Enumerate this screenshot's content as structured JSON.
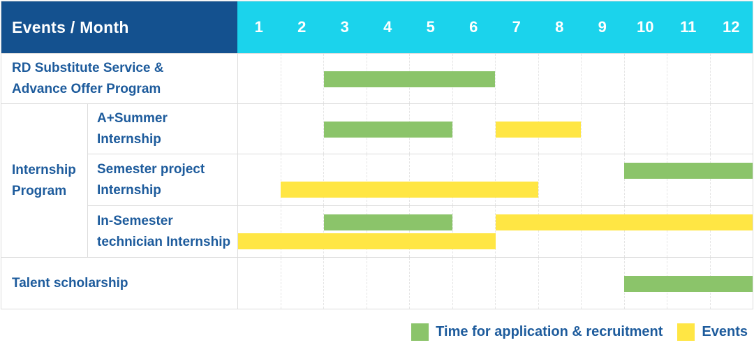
{
  "header": {
    "title": "Events / Month",
    "months": [
      "1",
      "2",
      "3",
      "4",
      "5",
      "6",
      "7",
      "8",
      "9",
      "10",
      "11",
      "12"
    ]
  },
  "chart_data": {
    "type": "bar",
    "subtype": "gantt",
    "title": "Events / Month schedule",
    "x": {
      "label": "Month",
      "range": [
        1,
        12
      ],
      "ticks": [
        1,
        2,
        3,
        4,
        5,
        6,
        7,
        8,
        9,
        10,
        11,
        12
      ]
    },
    "group_label": "Internship\nProgram",
    "rows": [
      {
        "label": "RD Substitute Service &\nAdvance Offer Program",
        "group": null,
        "bars": [
          {
            "series": "Time for application & recruitment",
            "color_key": "green",
            "start": 3,
            "end": 6,
            "track": "center"
          }
        ]
      },
      {
        "label": "A+Summer\nInternship",
        "group": "Internship Program",
        "bars": [
          {
            "series": "Time for application & recruitment",
            "color_key": "green",
            "start": 3,
            "end": 5,
            "track": "center"
          },
          {
            "series": "Events",
            "color_key": "yellow",
            "start": 7,
            "end": 8,
            "track": "center"
          }
        ]
      },
      {
        "label": "Semester project\nInternship",
        "group": "Internship Program",
        "bars": [
          {
            "series": "Time for application & recruitment",
            "color_key": "green",
            "start": 10,
            "end": 12,
            "track": "top"
          },
          {
            "series": "Events",
            "color_key": "yellow",
            "start": 2,
            "end": 7,
            "track": "bottom"
          }
        ]
      },
      {
        "label": "In-Semester\ntechnician Internship",
        "group": "Internship Program",
        "bars": [
          {
            "series": "Time for application & recruitment",
            "color_key": "green",
            "start": 3,
            "end": 5,
            "track": "top"
          },
          {
            "series": "Events",
            "color_key": "yellow",
            "start": 7,
            "end": 12,
            "track": "top"
          },
          {
            "series": "Events",
            "color_key": "yellow",
            "start": 1,
            "end": 6,
            "track": "bottom"
          }
        ]
      },
      {
        "label": "Talent scholarship",
        "group": null,
        "bars": [
          {
            "series": "Time for application & recruitment",
            "color_key": "green",
            "start": 10,
            "end": 12,
            "track": "center"
          }
        ]
      }
    ],
    "legend_position": "bottom-right"
  },
  "legend": {
    "items": [
      {
        "color_key": "green",
        "label": "Time for application & recruitment"
      },
      {
        "color_key": "yellow",
        "label": "Events"
      }
    ]
  },
  "colors": {
    "header_bg": "#14518f",
    "months_bg": "#1bd3ec",
    "header_text": "#ffffff",
    "label_text": "#1d5b9c",
    "green": "#8bc46a",
    "yellow": "#ffe644",
    "grid_line": "#e5e5e5",
    "row_border": "#dcdcdc"
  }
}
